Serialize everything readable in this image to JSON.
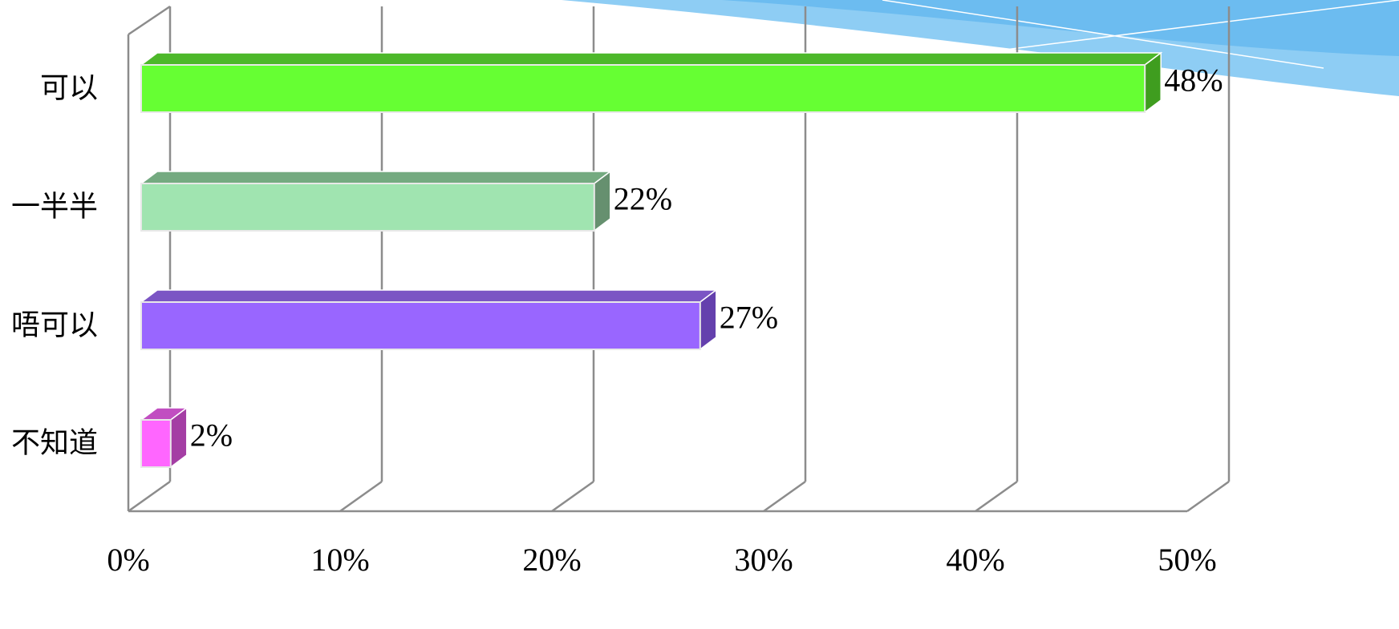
{
  "chart_data": {
    "type": "bar",
    "orientation": "horizontal",
    "style": "3d",
    "categories": [
      "可以",
      "一半半",
      "唔可以",
      "不知道"
    ],
    "values": [
      48,
      22,
      27,
      2
    ],
    "value_labels": [
      "48%",
      "22%",
      "27%",
      "2%"
    ],
    "xlim": [
      0,
      50
    ],
    "xticks": [
      "0%",
      "10%",
      "20%",
      "30%",
      "40%",
      "50%"
    ],
    "grid": true,
    "legend": "none",
    "colors": [
      {
        "front": "#66ff33",
        "top": "#4db82a",
        "side": "#3f9d1f"
      },
      {
        "front": "#a0e4b0",
        "top": "#74aa80",
        "side": "#66906f"
      },
      {
        "front": "#9966ff",
        "top": "#7b55c4",
        "side": "#6440ad"
      },
      {
        "front": "#ff66ff",
        "top": "#c14ec1",
        "side": "#a43ea4"
      }
    ]
  }
}
